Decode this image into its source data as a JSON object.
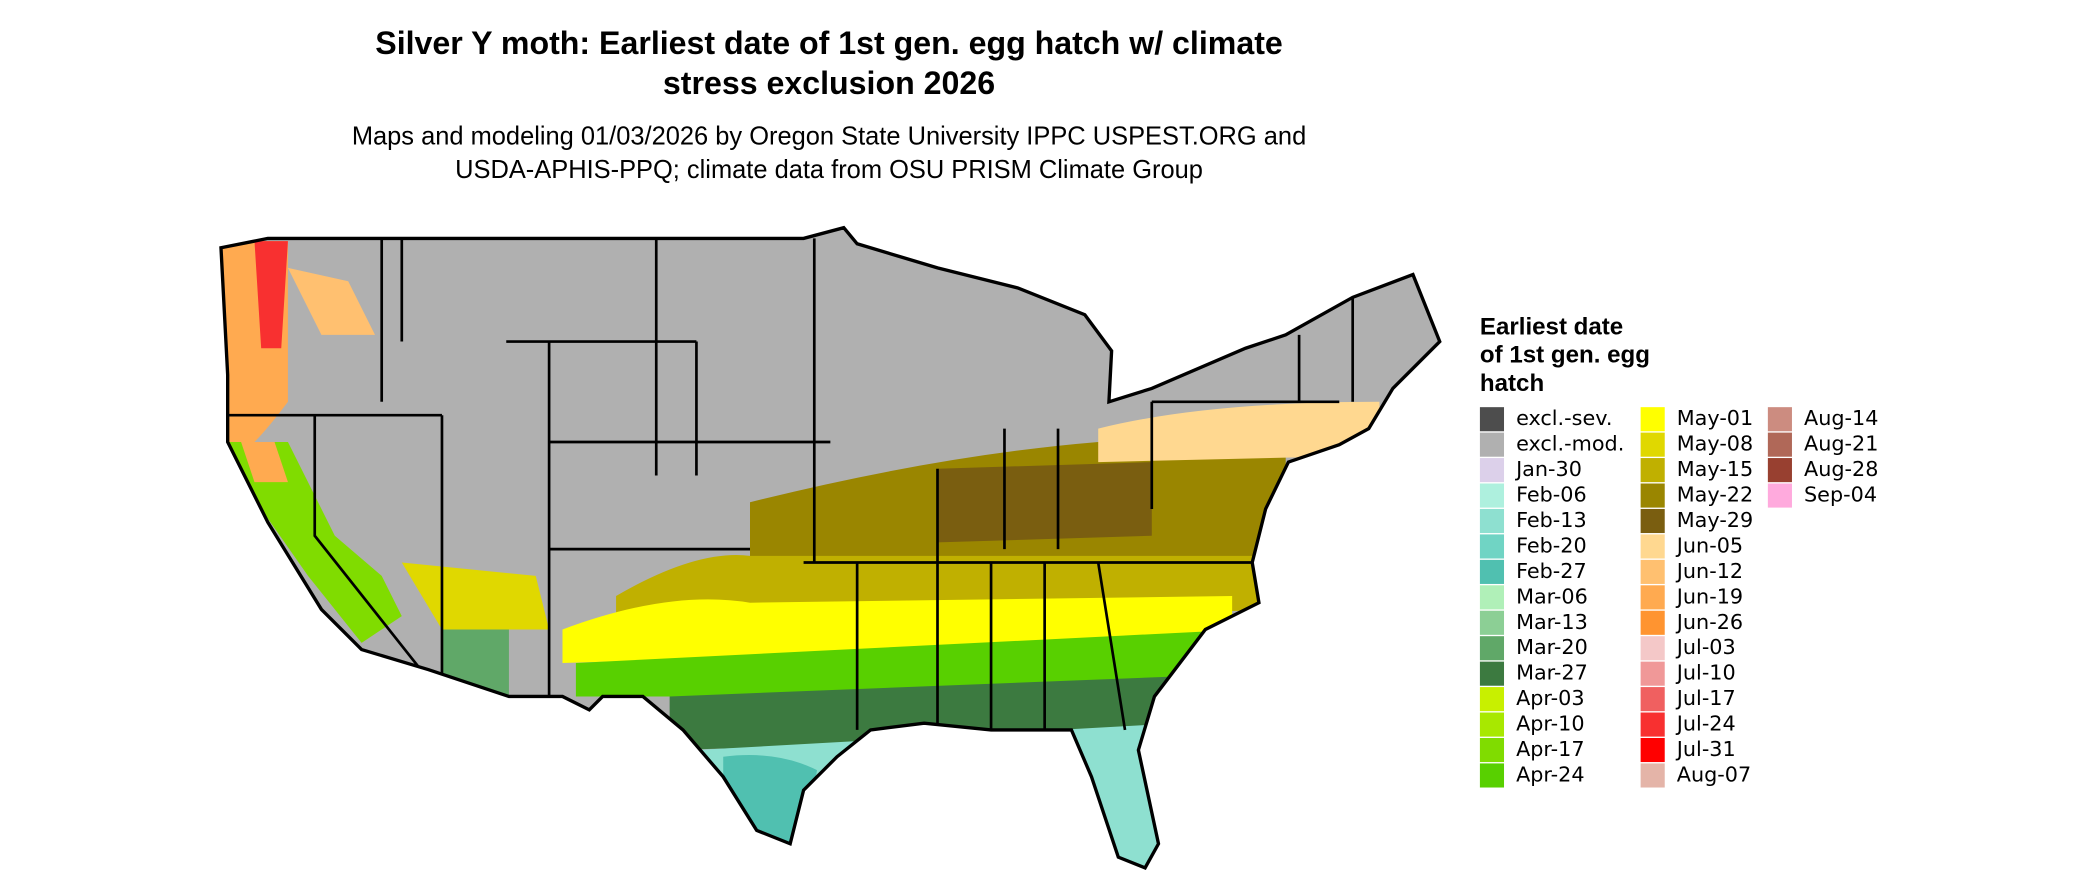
{
  "header": {
    "title": [
      "Silver Y moth: Earliest date of 1st gen. egg hatch w/ climate",
      "stress exclusion 2026"
    ],
    "subtitle": [
      "Maps and modeling 01/03/2026 by Oregon State University IPPC USPEST.ORG and",
      "USDA-APHIS-PPQ; climate data from OSU PRISM Climate Group"
    ]
  },
  "legend": {
    "title": [
      "Earliest date",
      "of 1st gen. egg",
      "hatch"
    ],
    "items": [
      {
        "label": "excl.-sev.",
        "color": "#4d4d4d"
      },
      {
        "label": "excl.-mod.",
        "color": "#b0b0b0"
      },
      {
        "label": "Jan-30",
        "color": "#dcd0ea"
      },
      {
        "label": "Feb-06",
        "color": "#aef0de"
      },
      {
        "label": "Feb-13",
        "color": "#8ee0d0"
      },
      {
        "label": "Feb-20",
        "color": "#70d4c4"
      },
      {
        "label": "Feb-27",
        "color": "#50c0b0"
      },
      {
        "label": "Mar-06",
        "color": "#b0f0b8"
      },
      {
        "label": "Mar-13",
        "color": "#8ccf95"
      },
      {
        "label": "Mar-20",
        "color": "#60a868"
      },
      {
        "label": "Mar-27",
        "color": "#3c7a40"
      },
      {
        "label": "Apr-03",
        "color": "#c8f000"
      },
      {
        "label": "Apr-10",
        "color": "#a8e800"
      },
      {
        "label": "Apr-17",
        "color": "#80dc00"
      },
      {
        "label": "Apr-24",
        "color": "#58d000"
      },
      {
        "label": "May-01",
        "color": "#ffff00"
      },
      {
        "label": "May-08",
        "color": "#e0d800"
      },
      {
        "label": "May-15",
        "color": "#c0b000"
      },
      {
        "label": "May-22",
        "color": "#9a8600"
      },
      {
        "label": "May-29",
        "color": "#7a5e10"
      },
      {
        "label": "Jun-05",
        "color": "#ffd890"
      },
      {
        "label": "Jun-12",
        "color": "#ffc070"
      },
      {
        "label": "Jun-19",
        "color": "#ffaa50"
      },
      {
        "label": "Jun-26",
        "color": "#ff9430"
      },
      {
        "label": "Jul-03",
        "color": "#f4c8c8"
      },
      {
        "label": "Jul-10",
        "color": "#f09898"
      },
      {
        "label": "Jul-17",
        "color": "#f06060"
      },
      {
        "label": "Jul-24",
        "color": "#f83030"
      },
      {
        "label": "Jul-31",
        "color": "#ff0000"
      },
      {
        "label": "Aug-07",
        "color": "#e4b4a8"
      },
      {
        "label": "Aug-14",
        "color": "#cc8c80"
      },
      {
        "label": "Aug-21",
        "color": "#b06858"
      },
      {
        "label": "Aug-28",
        "color": "#984030"
      },
      {
        "label": "Sep-04",
        "color": "#ffaadd"
      }
    ]
  }
}
